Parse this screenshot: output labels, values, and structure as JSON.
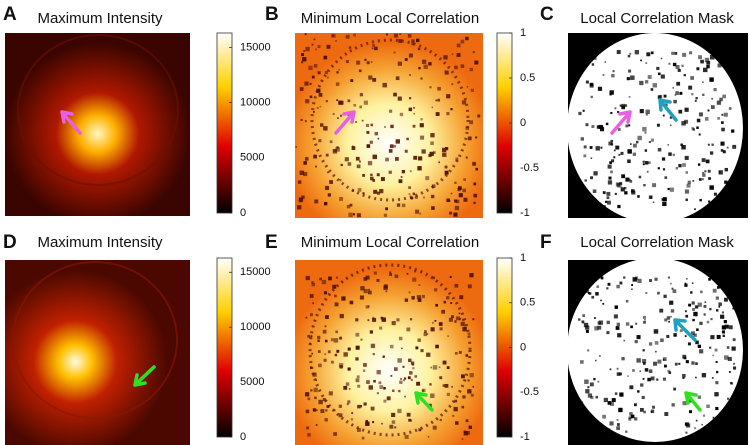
{
  "panels": [
    {
      "letter": "A",
      "title": "Maximum Intensity",
      "colorbar": {
        "range": [
          0,
          16300
        ],
        "ticks": [
          0,
          5000,
          10000,
          15000
        ]
      }
    },
    {
      "letter": "B",
      "title": "Minimum Local Correlation",
      "colorbar": {
        "range": [
          -1,
          1
        ],
        "ticks": [
          -1,
          -0.5,
          0,
          0.5,
          1
        ]
      }
    },
    {
      "letter": "C",
      "title": "Local Correlation Mask"
    },
    {
      "letter": "D",
      "title": "Maximum Intensity",
      "colorbar": {
        "range": [
          0,
          16300
        ],
        "ticks": [
          0,
          5000,
          10000,
          15000
        ]
      }
    },
    {
      "letter": "E",
      "title": "Minimum Local Correlation",
      "colorbar": {
        "range": [
          -1,
          1
        ],
        "ticks": [
          -1,
          -0.5,
          0,
          0.5,
          1
        ]
      }
    },
    {
      "letter": "F",
      "title": "Local Correlation Mask"
    }
  ]
}
